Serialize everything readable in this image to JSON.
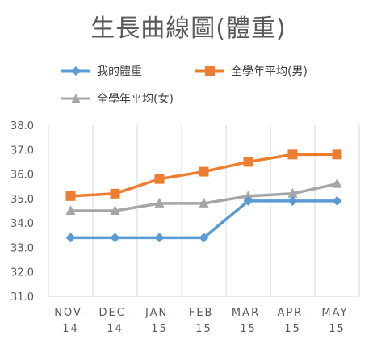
{
  "chart_data": {
    "type": "line",
    "title": "生長曲線圖(體重)",
    "categories": [
      [
        "NOV-",
        "14"
      ],
      [
        "DEC-",
        "14"
      ],
      [
        "JAN-",
        "15"
      ],
      [
        "FEB-",
        "15"
      ],
      [
        "MAR-",
        "15"
      ],
      [
        "APR-",
        "15"
      ],
      [
        "MAY-",
        "15"
      ]
    ],
    "ylim": [
      31.0,
      38.0
    ],
    "yticks": [
      "38.0",
      "37.0",
      "36.0",
      "35.0",
      "34.0",
      "33.0",
      "32.0",
      "31.0"
    ],
    "ytick_values": [
      38,
      37,
      36,
      35,
      34,
      33,
      32,
      31
    ],
    "grid": "vertical",
    "legend": "top",
    "series": [
      {
        "name": "我的體重",
        "color": "#5b9bd5",
        "marker": "diamond",
        "values": [
          33.4,
          33.4,
          33.4,
          33.4,
          34.9,
          34.9,
          34.9
        ]
      },
      {
        "name": "全學年平均(男)",
        "color": "#ed7d31",
        "marker": "square",
        "values": [
          35.1,
          35.2,
          35.8,
          36.1,
          36.5,
          36.8,
          36.8
        ]
      },
      {
        "name": "全學年平均(女)",
        "color": "#a5a5a5",
        "marker": "triangle",
        "values": [
          34.5,
          34.5,
          34.8,
          34.8,
          35.1,
          35.2,
          35.6
        ]
      }
    ]
  }
}
